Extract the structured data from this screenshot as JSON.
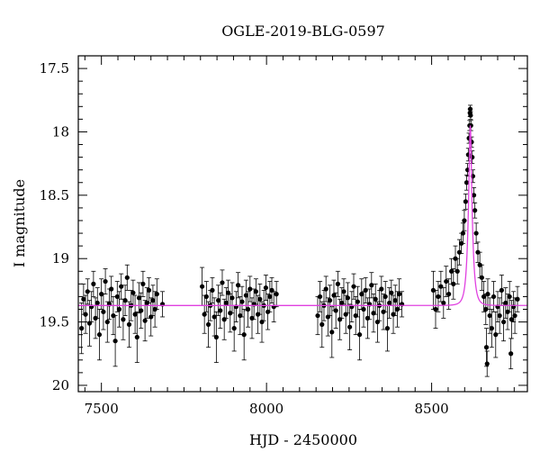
{
  "chart_data": {
    "type": "scatter",
    "title": "OGLE-2019-BLG-0597",
    "xlabel": "HJD - 2450000",
    "ylabel": "I magnitude",
    "xlim": [
      7430,
      8790
    ],
    "ylim": [
      17.4,
      20.05
    ],
    "y_inverted": true,
    "grid": false,
    "x_ticks": [
      7500,
      8000,
      8500
    ],
    "x_tick_labels": [
      "7500",
      "8000",
      "8500"
    ],
    "y_ticks": [
      17.5,
      18,
      18.5,
      19,
      19.5,
      20
    ],
    "y_tick_labels": [
      "17.5",
      "18",
      "18.5",
      "19",
      "19.5",
      "20"
    ],
    "colors": {
      "data": "#000000",
      "model": "#e040e0"
    },
    "model": {
      "name": "",
      "baseline_mag": 19.37,
      "peak_time": 8617,
      "peak_mag": 17.95,
      "timescale_days": 12
    },
    "series": [
      {
        "name": "",
        "marker": "filled-circle",
        "error_bars": true,
        "points": [
          {
            "x": 7440,
            "y": 19.55,
            "err": 0.2
          },
          {
            "x": 7446,
            "y": 19.32,
            "err": 0.12
          },
          {
            "x": 7452,
            "y": 19.44,
            "err": 0.15
          },
          {
            "x": 7458,
            "y": 19.26,
            "err": 0.1
          },
          {
            "x": 7464,
            "y": 19.51,
            "err": 0.18
          },
          {
            "x": 7470,
            "y": 19.38,
            "err": 0.12
          },
          {
            "x": 7476,
            "y": 19.2,
            "err": 0.1
          },
          {
            "x": 7482,
            "y": 19.47,
            "err": 0.16
          },
          {
            "x": 7488,
            "y": 19.35,
            "err": 0.12
          },
          {
            "x": 7494,
            "y": 19.6,
            "err": 0.2
          },
          {
            "x": 7500,
            "y": 19.28,
            "err": 0.12
          },
          {
            "x": 7506,
            "y": 19.42,
            "err": 0.14
          },
          {
            "x": 7512,
            "y": 19.18,
            "err": 0.1
          },
          {
            "x": 7518,
            "y": 19.5,
            "err": 0.16
          },
          {
            "x": 7524,
            "y": 19.36,
            "err": 0.12
          },
          {
            "x": 7530,
            "y": 19.24,
            "err": 0.1
          },
          {
            "x": 7536,
            "y": 19.45,
            "err": 0.15
          },
          {
            "x": 7542,
            "y": 19.65,
            "err": 0.2
          },
          {
            "x": 7548,
            "y": 19.3,
            "err": 0.12
          },
          {
            "x": 7554,
            "y": 19.4,
            "err": 0.14
          },
          {
            "x": 7560,
            "y": 19.22,
            "err": 0.1
          },
          {
            "x": 7566,
            "y": 19.48,
            "err": 0.16
          },
          {
            "x": 7572,
            "y": 19.33,
            "err": 0.12
          },
          {
            "x": 7578,
            "y": 19.15,
            "err": 0.1
          },
          {
            "x": 7584,
            "y": 19.52,
            "err": 0.18
          },
          {
            "x": 7590,
            "y": 19.37,
            "err": 0.12
          },
          {
            "x": 7596,
            "y": 19.27,
            "err": 0.1
          },
          {
            "x": 7602,
            "y": 19.44,
            "err": 0.15
          },
          {
            "x": 7608,
            "y": 19.62,
            "err": 0.2
          },
          {
            "x": 7614,
            "y": 19.31,
            "err": 0.12
          },
          {
            "x": 7620,
            "y": 19.41,
            "err": 0.14
          },
          {
            "x": 7626,
            "y": 19.2,
            "err": 0.1
          },
          {
            "x": 7632,
            "y": 19.49,
            "err": 0.16
          },
          {
            "x": 7638,
            "y": 19.35,
            "err": 0.12
          },
          {
            "x": 7644,
            "y": 19.25,
            "err": 0.1
          },
          {
            "x": 7650,
            "y": 19.46,
            "err": 0.15
          },
          {
            "x": 7656,
            "y": 19.33,
            "err": 0.12
          },
          {
            "x": 7662,
            "y": 19.4,
            "err": 0.14
          },
          {
            "x": 7668,
            "y": 19.28,
            "err": 0.12
          },
          {
            "x": 7685,
            "y": 19.36,
            "err": 0.1
          },
          {
            "x": 7805,
            "y": 19.22,
            "err": 0.15
          },
          {
            "x": 7812,
            "y": 19.44,
            "err": 0.15
          },
          {
            "x": 7818,
            "y": 19.3,
            "err": 0.12
          },
          {
            "x": 7824,
            "y": 19.52,
            "err": 0.18
          },
          {
            "x": 7830,
            "y": 19.37,
            "err": 0.12
          },
          {
            "x": 7836,
            "y": 19.25,
            "err": 0.1
          },
          {
            "x": 7842,
            "y": 19.46,
            "err": 0.15
          },
          {
            "x": 7848,
            "y": 19.62,
            "err": 0.2
          },
          {
            "x": 7854,
            "y": 19.33,
            "err": 0.12
          },
          {
            "x": 7860,
            "y": 19.41,
            "err": 0.14
          },
          {
            "x": 7866,
            "y": 19.19,
            "err": 0.1
          },
          {
            "x": 7872,
            "y": 19.48,
            "err": 0.16
          },
          {
            "x": 7878,
            "y": 19.35,
            "err": 0.12
          },
          {
            "x": 7884,
            "y": 19.27,
            "err": 0.1
          },
          {
            "x": 7890,
            "y": 19.43,
            "err": 0.15
          },
          {
            "x": 7896,
            "y": 19.31,
            "err": 0.12
          },
          {
            "x": 7902,
            "y": 19.55,
            "err": 0.18
          },
          {
            "x": 7908,
            "y": 19.38,
            "err": 0.12
          },
          {
            "x": 7914,
            "y": 19.21,
            "err": 0.1
          },
          {
            "x": 7920,
            "y": 19.45,
            "err": 0.15
          },
          {
            "x": 7926,
            "y": 19.34,
            "err": 0.12
          },
          {
            "x": 7932,
            "y": 19.6,
            "err": 0.2
          },
          {
            "x": 7938,
            "y": 19.29,
            "err": 0.12
          },
          {
            "x": 7944,
            "y": 19.4,
            "err": 0.14
          },
          {
            "x": 7950,
            "y": 19.24,
            "err": 0.1
          },
          {
            "x": 7956,
            "y": 19.47,
            "err": 0.16
          },
          {
            "x": 7962,
            "y": 19.36,
            "err": 0.12
          },
          {
            "x": 7968,
            "y": 19.26,
            "err": 0.1
          },
          {
            "x": 7974,
            "y": 19.44,
            "err": 0.15
          },
          {
            "x": 7980,
            "y": 19.32,
            "err": 0.12
          },
          {
            "x": 7986,
            "y": 19.5,
            "err": 0.16
          },
          {
            "x": 7992,
            "y": 19.37,
            "err": 0.12
          },
          {
            "x": 7998,
            "y": 19.23,
            "err": 0.1
          },
          {
            "x": 8004,
            "y": 19.42,
            "err": 0.14
          },
          {
            "x": 8010,
            "y": 19.3,
            "err": 0.12
          },
          {
            "x": 8016,
            "y": 19.25,
            "err": 0.1
          },
          {
            "x": 8022,
            "y": 19.38,
            "err": 0.12
          },
          {
            "x": 8030,
            "y": 19.28,
            "err": 0.1
          },
          {
            "x": 8155,
            "y": 19.45,
            "err": 0.15
          },
          {
            "x": 8162,
            "y": 19.3,
            "err": 0.12
          },
          {
            "x": 8168,
            "y": 19.52,
            "err": 0.18
          },
          {
            "x": 8174,
            "y": 19.37,
            "err": 0.12
          },
          {
            "x": 8180,
            "y": 19.24,
            "err": 0.1
          },
          {
            "x": 8186,
            "y": 19.46,
            "err": 0.15
          },
          {
            "x": 8192,
            "y": 19.33,
            "err": 0.12
          },
          {
            "x": 8198,
            "y": 19.58,
            "err": 0.2
          },
          {
            "x": 8204,
            "y": 19.29,
            "err": 0.12
          },
          {
            "x": 8210,
            "y": 19.41,
            "err": 0.14
          },
          {
            "x": 8216,
            "y": 19.2,
            "err": 0.1
          },
          {
            "x": 8222,
            "y": 19.48,
            "err": 0.16
          },
          {
            "x": 8228,
            "y": 19.35,
            "err": 0.12
          },
          {
            "x": 8234,
            "y": 19.26,
            "err": 0.1
          },
          {
            "x": 8240,
            "y": 19.44,
            "err": 0.15
          },
          {
            "x": 8246,
            "y": 19.31,
            "err": 0.12
          },
          {
            "x": 8252,
            "y": 19.54,
            "err": 0.18
          },
          {
            "x": 8258,
            "y": 19.38,
            "err": 0.12
          },
          {
            "x": 8264,
            "y": 19.22,
            "err": 0.1
          },
          {
            "x": 8270,
            "y": 19.45,
            "err": 0.15
          },
          {
            "x": 8276,
            "y": 19.34,
            "err": 0.12
          },
          {
            "x": 8282,
            "y": 19.6,
            "err": 0.2
          },
          {
            "x": 8288,
            "y": 19.28,
            "err": 0.12
          },
          {
            "x": 8294,
            "y": 19.4,
            "err": 0.14
          },
          {
            "x": 8300,
            "y": 19.25,
            "err": 0.1
          },
          {
            "x": 8306,
            "y": 19.47,
            "err": 0.16
          },
          {
            "x": 8312,
            "y": 19.36,
            "err": 0.12
          },
          {
            "x": 8318,
            "y": 19.21,
            "err": 0.1
          },
          {
            "x": 8324,
            "y": 19.43,
            "err": 0.15
          },
          {
            "x": 8330,
            "y": 19.32,
            "err": 0.12
          },
          {
            "x": 8336,
            "y": 19.5,
            "err": 0.16
          },
          {
            "x": 8342,
            "y": 19.37,
            "err": 0.12
          },
          {
            "x": 8348,
            "y": 19.24,
            "err": 0.1
          },
          {
            "x": 8354,
            "y": 19.42,
            "err": 0.14
          },
          {
            "x": 8360,
            "y": 19.3,
            "err": 0.12
          },
          {
            "x": 8366,
            "y": 19.55,
            "err": 0.18
          },
          {
            "x": 8372,
            "y": 19.35,
            "err": 0.12
          },
          {
            "x": 8378,
            "y": 19.27,
            "err": 0.1
          },
          {
            "x": 8384,
            "y": 19.44,
            "err": 0.15
          },
          {
            "x": 8390,
            "y": 19.33,
            "err": 0.12
          },
          {
            "x": 8396,
            "y": 19.4,
            "err": 0.14
          },
          {
            "x": 8402,
            "y": 19.28,
            "err": 0.12
          },
          {
            "x": 8410,
            "y": 19.36,
            "err": 0.1
          },
          {
            "x": 8505,
            "y": 19.25,
            "err": 0.15
          },
          {
            "x": 8512,
            "y": 19.4,
            "err": 0.15
          },
          {
            "x": 8520,
            "y": 19.3,
            "err": 0.12
          },
          {
            "x": 8528,
            "y": 19.22,
            "err": 0.12
          },
          {
            "x": 8536,
            "y": 19.35,
            "err": 0.12
          },
          {
            "x": 8544,
            "y": 19.18,
            "err": 0.12
          },
          {
            "x": 8552,
            "y": 19.28,
            "err": 0.12
          },
          {
            "x": 8560,
            "y": 19.1,
            "err": 0.1
          },
          {
            "x": 8566,
            "y": 19.2,
            "err": 0.12
          },
          {
            "x": 8572,
            "y": 19.0,
            "err": 0.1
          },
          {
            "x": 8578,
            "y": 19.1,
            "err": 0.1
          },
          {
            "x": 8584,
            "y": 18.95,
            "err": 0.1
          },
          {
            "x": 8590,
            "y": 18.88,
            "err": 0.08
          },
          {
            "x": 8595,
            "y": 18.8,
            "err": 0.08
          },
          {
            "x": 8599,
            "y": 18.7,
            "err": 0.08
          },
          {
            "x": 8603,
            "y": 18.55,
            "err": 0.06
          },
          {
            "x": 8606,
            "y": 18.4,
            "err": 0.06
          },
          {
            "x": 8609,
            "y": 18.3,
            "err": 0.05
          },
          {
            "x": 8611,
            "y": 18.18,
            "err": 0.05
          },
          {
            "x": 8613,
            "y": 18.05,
            "err": 0.04
          },
          {
            "x": 8615,
            "y": 17.95,
            "err": 0.04
          },
          {
            "x": 8616,
            "y": 17.85,
            "err": 0.03
          },
          {
            "x": 8617,
            "y": 17.82,
            "err": 0.03
          },
          {
            "x": 8618,
            "y": 17.87,
            "err": 0.03
          },
          {
            "x": 8619,
            "y": 17.95,
            "err": 0.04
          },
          {
            "x": 8621,
            "y": 18.08,
            "err": 0.04
          },
          {
            "x": 8623,
            "y": 18.2,
            "err": 0.05
          },
          {
            "x": 8625,
            "y": 18.35,
            "err": 0.05
          },
          {
            "x": 8628,
            "y": 18.5,
            "err": 0.06
          },
          {
            "x": 8631,
            "y": 18.62,
            "err": 0.06
          },
          {
            "x": 8635,
            "y": 18.8,
            "err": 0.08
          },
          {
            "x": 8640,
            "y": 18.95,
            "err": 0.08
          },
          {
            "x": 8646,
            "y": 19.05,
            "err": 0.1
          },
          {
            "x": 8652,
            "y": 19.15,
            "err": 0.1
          },
          {
            "x": 8658,
            "y": 19.3,
            "err": 0.12
          },
          {
            "x": 8664,
            "y": 19.4,
            "err": 0.12
          },
          {
            "x": 8670,
            "y": 19.28,
            "err": 0.12
          },
          {
            "x": 8676,
            "y": 19.45,
            "err": 0.14
          },
          {
            "x": 8682,
            "y": 19.55,
            "err": 0.15
          },
          {
            "x": 8688,
            "y": 19.3,
            "err": 0.12
          },
          {
            "x": 8694,
            "y": 19.6,
            "err": 0.18
          },
          {
            "x": 8700,
            "y": 19.38,
            "err": 0.12
          },
          {
            "x": 8706,
            "y": 19.45,
            "err": 0.14
          },
          {
            "x": 8712,
            "y": 19.25,
            "err": 0.12
          },
          {
            "x": 8718,
            "y": 19.5,
            "err": 0.15
          },
          {
            "x": 8724,
            "y": 19.35,
            "err": 0.12
          },
          {
            "x": 8730,
            "y": 19.42,
            "err": 0.14
          },
          {
            "x": 8736,
            "y": 19.3,
            "err": 0.12
          },
          {
            "x": 8742,
            "y": 19.48,
            "err": 0.15
          },
          {
            "x": 8748,
            "y": 19.38,
            "err": 0.12
          },
          {
            "x": 8752,
            "y": 19.45,
            "err": 0.14
          },
          {
            "x": 8760,
            "y": 19.32,
            "err": 0.1
          },
          {
            "x": 8666,
            "y": 19.7,
            "err": 0.15
          },
          {
            "x": 8668,
            "y": 19.83,
            "err": 0.1
          },
          {
            "x": 8740,
            "y": 19.75,
            "err": 0.12
          }
        ]
      }
    ]
  }
}
